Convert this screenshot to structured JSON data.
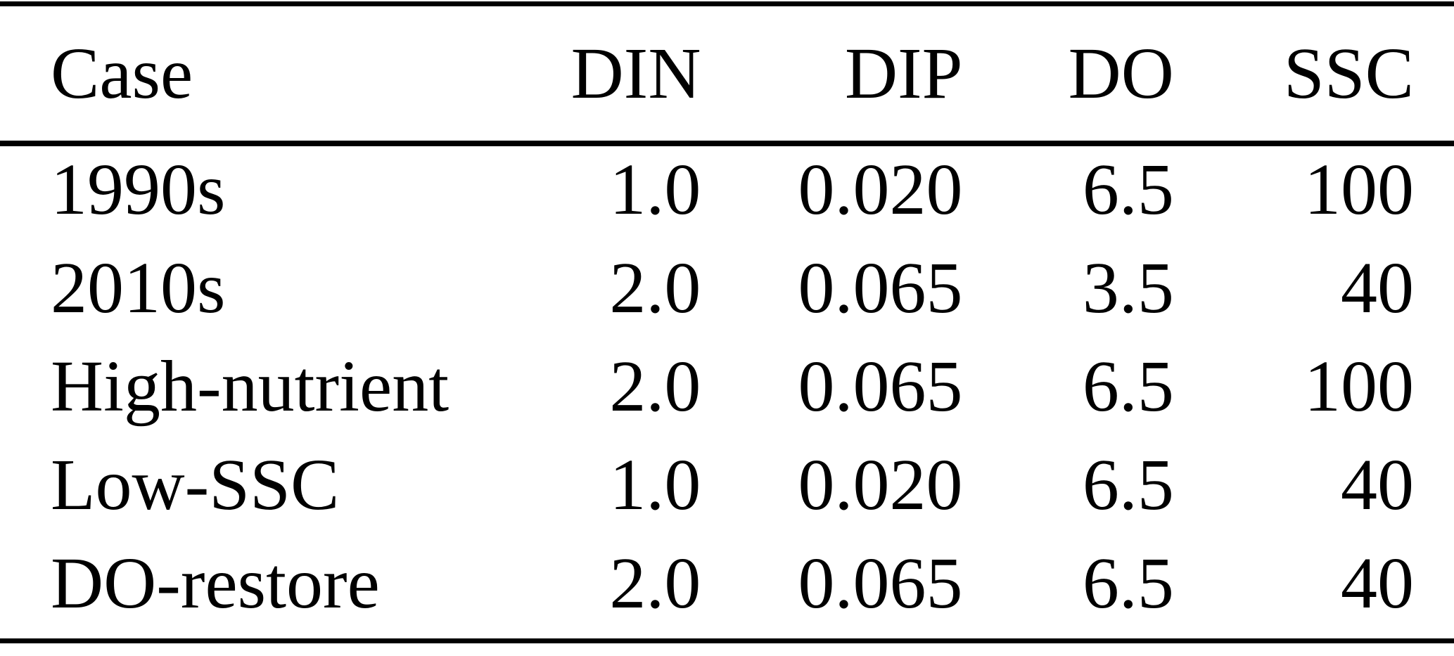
{
  "document": {
    "kind": "scenario-parameters-table",
    "colors": {
      "background": "#ffffff",
      "text": "#000000",
      "rule": "#000000"
    }
  },
  "table": {
    "headers": [
      "Case",
      "DIN",
      "DIP",
      "DO",
      "SSC"
    ],
    "rows": [
      [
        "1990s",
        "1.0",
        "0.020",
        "6.5",
        "100"
      ],
      [
        "2010s",
        "2.0",
        "0.065",
        "3.5",
        "40"
      ],
      [
        "High-nutrient",
        "2.0",
        "0.065",
        "6.5",
        "100"
      ],
      [
        "Low-SSC",
        "1.0",
        "0.020",
        "6.5",
        "40"
      ],
      [
        "DO-restore",
        "2.0",
        "0.065",
        "6.5",
        "40"
      ]
    ]
  }
}
